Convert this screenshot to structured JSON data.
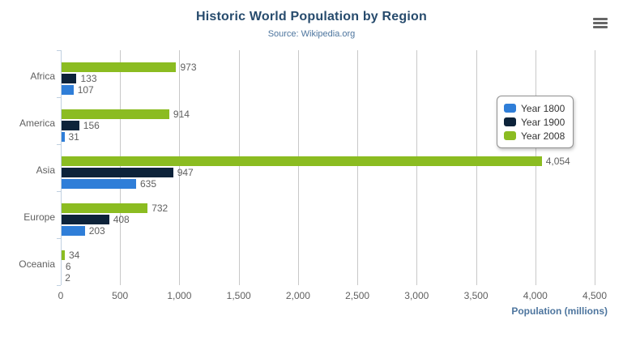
{
  "chart": {
    "export_menu_icon": "hamburger-icon"
  },
  "colors": {
    "title": "#274b6d",
    "subtitle": "#4d759e",
    "axis_title": "#4d759e",
    "axis_labels": "#606060",
    "data_labels": "#606060",
    "gridline": "#c8c8c8",
    "axis_line": "#c0d0e0",
    "legend_border": "#909090",
    "menu_icon": "#666666"
  },
  "chart_data": {
    "type": "bar",
    "title": "Historic World Population by Region",
    "subtitle": "Source: Wikipedia.org",
    "xlabel": "Population (millions)",
    "ylabel": "",
    "categories": [
      "Africa",
      "America",
      "Asia",
      "Europe",
      "Oceania"
    ],
    "series": [
      {
        "name": "Year 1800",
        "color": "#2f7ed8",
        "values": [
          107,
          31,
          635,
          203,
          2
        ]
      },
      {
        "name": "Year 1900",
        "color": "#0d233a",
        "values": [
          133,
          156,
          947,
          408,
          6
        ]
      },
      {
        "name": "Year 2008",
        "color": "#8bbc21",
        "values": [
          973,
          914,
          4054,
          732,
          34
        ]
      }
    ],
    "data_labels": {
      "Year 1800": [
        "107",
        "31",
        "635",
        "203",
        "2"
      ],
      "Year 1900": [
        "133",
        "156",
        "947",
        "408",
        "6"
      ],
      "Year 2008": [
        "973",
        "914",
        "4,054",
        "732",
        "34"
      ]
    },
    "xlim": [
      0,
      4500
    ],
    "x_tick_step": 500,
    "x_ticks": [
      "0",
      "500",
      "1,000",
      "1,500",
      "2,000",
      "2,500",
      "3,000",
      "3,500",
      "4,000",
      "4,500"
    ],
    "grid": true,
    "legend_position": "right",
    "bar_display_order_top_to_bottom": [
      "Year 2008",
      "Year 1900",
      "Year 1800"
    ]
  }
}
